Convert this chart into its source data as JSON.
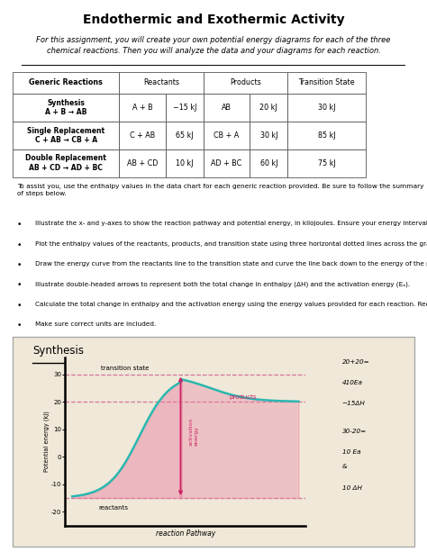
{
  "title": "Endothermic and Exothermic Activity",
  "subtitle": "For this assignment, you will create your own potential energy diagrams for each of the three\nchemical reactions. Then you will analyze the data and your diagrams for each reaction.",
  "table_rows": [
    [
      "Synthesis\nA + B → AB",
      "A + B",
      "−15 kJ",
      "AB",
      "20 kJ",
      "30 kJ"
    ],
    [
      "Single Replacement\nC + AB → CB + A",
      "C + AB",
      "65 kJ",
      "CB + A",
      "30 kJ",
      "85 kJ"
    ],
    [
      "Double Replacement\nAB + CD → AD + BC",
      "AB + CD",
      "10 kJ",
      "AD + BC",
      "60 kJ",
      "75 kJ"
    ]
  ],
  "bullet_intro": "To assist you, use the enthalpy values in the data chart for each generic reaction provided. Be sure to follow the summary of steps below.",
  "bullet_points": [
    "Illustrate the x- and y-axes to show the reaction pathway and potential energy, in kilojoules. Ensure your energy intervals are appropriate for the data.",
    "Plot the enthalpy values of the reactants, products, and transition state using three horizontal dotted lines across the graph for each.",
    "Draw the energy curve from the reactants line to the transition state and curve the line back down to the energy of the products. Label the reactants, products, and transition state.",
    "Illustrate double-headed arrows to represent both the total change in enthalpy (ΔH) and the activation energy (Eₐ).",
    "Calculate the total change in enthalpy and the activation energy using the energy values provided for each reaction. Record those values below the graph.",
    "Make sure correct units are included."
  ],
  "graph_title": "Synthesis",
  "graph_bg_color": "#f0e8d8",
  "curve_color": "#2ab8b0",
  "fill_color": "#e87ca0",
  "dashed_color": "#d06090",
  "y_ticks": [
    -20,
    -10,
    0,
    10,
    20,
    30
  ],
  "xlabel": "reaction Pathway",
  "ylabel": "Potential energy (kJ)",
  "reactant_e": -15,
  "product_e": 20,
  "transition_e": 30,
  "side_notes": [
    "20+20=",
    "410Ea",
    "−15ΔH",
    "30-20=",
    "10 Ea",
    "&",
    "10 ΔH"
  ],
  "background_color": "#ffffff",
  "text_color": "#000000"
}
